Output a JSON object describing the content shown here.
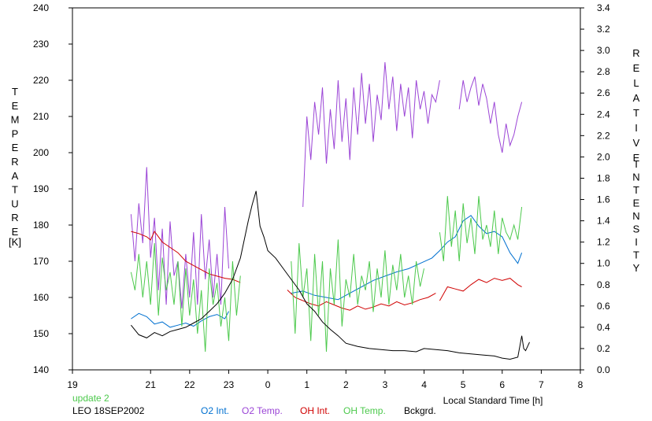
{
  "chart_data": {
    "type": "line",
    "x_axis": {
      "label": "Local Standard Time [h]",
      "ticks": [
        "19",
        "21",
        "22",
        "23",
        "0",
        "1",
        "2",
        "3",
        "4",
        "5",
        "6",
        "7",
        "8"
      ],
      "range": [
        19,
        32
      ]
    },
    "y_left": {
      "label_letters": [
        "T",
        "E",
        "M",
        "P",
        "E",
        "R",
        "A",
        "T",
        "U",
        "R",
        "E"
      ],
      "unit": "[K]",
      "range": [
        140,
        240
      ],
      "ticks": [
        "140",
        "150",
        "160",
        "170",
        "180",
        "190",
        "200",
        "210",
        "220",
        "230",
        "240"
      ]
    },
    "y_right": {
      "label_letters_1": [
        "R",
        "E",
        "L",
        "A",
        "T",
        "I",
        "V",
        "E"
      ],
      "label_letters_2": [
        "I",
        "N",
        "T",
        "E",
        "N",
        "S",
        "I",
        "T",
        "Y"
      ],
      "range": [
        0,
        3.4
      ],
      "ticks": [
        "0.0",
        "0.2",
        "0.4",
        "0.6",
        "0.8",
        "1.0",
        "1.2",
        "1.4",
        "1.6",
        "1.8",
        "2.0",
        "2.2",
        "2.4",
        "2.6",
        "2.8",
        "3.0",
        "3.2",
        "3.4"
      ]
    },
    "update_text": "update 2",
    "station_text": "LEO 18SEP2002",
    "series": [
      {
        "name": "O2 Int.",
        "axis": "right",
        "color": "#0070d0",
        "segments": [
          {
            "x": [
              20.5,
              20.7,
              20.9,
              21.1,
              21.3,
              21.5,
              21.7,
              21.9,
              22.1,
              22.3,
              22.5,
              22.7,
              22.9,
              23.0
            ],
            "y": [
              0.48,
              0.53,
              0.5,
              0.43,
              0.45,
              0.4,
              0.42,
              0.44,
              0.41,
              0.46,
              0.5,
              0.52,
              0.48,
              0.55
            ]
          },
          {
            "x": [
              24.6,
              24.9,
              25.2,
              25.5,
              25.8,
              26.1,
              26.4,
              26.7,
              27.0,
              27.3,
              27.6,
              27.9,
              28.2,
              28.4,
              28.6,
              28.8,
              29.0,
              29.2,
              29.4,
              29.6,
              29.8,
              30.0,
              30.2,
              30.4,
              30.5
            ],
            "y": [
              0.72,
              0.74,
              0.7,
              0.68,
              0.66,
              0.72,
              0.78,
              0.84,
              0.88,
              0.92,
              0.95,
              1.0,
              1.05,
              1.12,
              1.2,
              1.25,
              1.4,
              1.45,
              1.35,
              1.28,
              1.3,
              1.25,
              1.1,
              1.0,
              1.1
            ]
          }
        ]
      },
      {
        "name": "O2 Temp.",
        "axis": "left",
        "color": "#9b45d6",
        "segments": [
          {
            "x": [
              20.5,
              20.6,
              20.7,
              20.8,
              20.9,
              21.0,
              21.1,
              21.2,
              21.3,
              21.4,
              21.5,
              21.6,
              21.7,
              21.8,
              21.9,
              22.0,
              22.1,
              22.2,
              22.3,
              22.4,
              22.5,
              22.6,
              22.7,
              22.8,
              22.9,
              23.0
            ],
            "y": [
              183,
              170,
              186,
              175,
              196,
              171,
              182,
              162,
              179,
              158,
              181,
              166,
              170,
              157,
              172,
              160,
              178,
              158,
              183,
              165,
              176,
              160,
              172,
              158,
              185,
              168
            ]
          },
          {
            "x": [
              24.9,
              25.0,
              25.1,
              25.2,
              25.3,
              25.4,
              25.5,
              25.6,
              25.7,
              25.8,
              25.9,
              26.0,
              26.1,
              26.2,
              26.3,
              26.4,
              26.5,
              26.6,
              26.7,
              26.8,
              26.9,
              27.0,
              27.1,
              27.2,
              27.3,
              27.4,
              27.5,
              27.6,
              27.7,
              27.8,
              27.9,
              28.0,
              28.1,
              28.2,
              28.3,
              28.4
            ],
            "y": [
              185,
              210,
              198,
              214,
              205,
              218,
              197,
              212,
              201,
              220,
              203,
              215,
              198,
              218,
              205,
              222,
              208,
              219,
              203,
              216,
              209,
              225,
              212,
              221,
              206,
              219,
              210,
              218,
              204,
              220,
              212,
              217,
              208,
              216,
              214,
              220
            ]
          },
          {
            "x": [
              28.9,
              29.0,
              29.1,
              29.2,
              29.3,
              29.4,
              29.5,
              29.6,
              29.7,
              29.8,
              29.9,
              30.0,
              30.1,
              30.2,
              30.3,
              30.4,
              30.5
            ],
            "y": [
              212,
              220,
              214,
              218,
              221,
              213,
              219,
              215,
              208,
              214,
              205,
              200,
              208,
              202,
              205,
              210,
              214
            ]
          }
        ]
      },
      {
        "name": "OH Int.",
        "axis": "right",
        "color": "#d00000",
        "segments": [
          {
            "x": [
              20.5,
              20.7,
              20.9,
              21.0,
              21.1,
              21.3,
              21.5,
              21.7,
              21.9,
              22.1,
              22.3,
              22.5,
              22.7,
              22.9,
              23.1,
              23.3
            ],
            "y": [
              1.3,
              1.28,
              1.25,
              1.22,
              1.3,
              1.2,
              1.15,
              1.1,
              1.02,
              0.98,
              0.94,
              0.9,
              0.88,
              0.86,
              0.85,
              0.82
            ]
          },
          {
            "x": [
              24.5,
              24.7,
              24.9,
              25.1,
              25.3,
              25.5,
              25.7,
              25.9,
              26.1,
              26.3,
              26.5,
              26.7,
              26.9,
              27.1,
              27.3,
              27.5,
              27.7,
              27.9,
              28.1,
              28.3
            ],
            "y": [
              0.75,
              0.68,
              0.65,
              0.62,
              0.6,
              0.64,
              0.61,
              0.58,
              0.56,
              0.6,
              0.57,
              0.59,
              0.62,
              0.6,
              0.64,
              0.61,
              0.63,
              0.66,
              0.68,
              0.72
            ]
          },
          {
            "x": [
              28.4,
              28.6,
              28.8,
              29.0,
              29.2,
              29.4,
              29.6,
              29.8,
              30.0,
              30.2,
              30.4,
              30.5
            ],
            "y": [
              0.65,
              0.78,
              0.76,
              0.74,
              0.8,
              0.85,
              0.82,
              0.86,
              0.84,
              0.86,
              0.8,
              0.78
            ]
          }
        ]
      },
      {
        "name": "OH Temp.",
        "axis": "left",
        "color": "#4cc94c",
        "segments": [
          {
            "x": [
              20.5,
              20.6,
              20.7,
              20.8,
              20.9,
              21.0,
              21.1,
              21.2,
              21.3,
              21.4,
              21.5,
              21.6,
              21.7,
              21.8,
              21.9,
              22.0,
              22.1,
              22.2,
              22.3,
              22.4,
              22.5,
              22.6,
              22.7,
              22.8,
              22.9,
              23.0,
              23.1,
              23.2,
              23.3
            ],
            "y": [
              167,
              162,
              172,
              160,
              170,
              158,
              175,
              155,
              171,
              162,
              167,
              158,
              170,
              152,
              168,
              155,
              165,
              150,
              162,
              145,
              168,
              158,
              164,
              152,
              160,
              148,
              170,
              155,
              166
            ]
          },
          {
            "x": [
              24.6,
              24.7,
              24.8,
              24.9,
              25.0,
              25.1,
              25.2,
              25.3,
              25.4,
              25.5,
              25.6,
              25.7,
              25.8,
              25.9,
              26.0,
              26.1,
              26.2,
              26.3,
              26.4,
              26.5,
              26.6,
              26.7,
              26.8,
              26.9,
              27.0,
              27.1,
              27.2,
              27.3,
              27.4,
              27.5,
              27.6,
              27.7,
              27.8,
              27.9,
              28.0
            ],
            "y": [
              170,
              150,
              175,
              160,
              168,
              148,
              172,
              155,
              170,
              145,
              168,
              158,
              176,
              152,
              165,
              160,
              172,
              158,
              166,
              162,
              170,
              156,
              168,
              160,
              173,
              158,
              169,
              162,
              172,
              160,
              166,
              158,
              170,
              163,
              168
            ]
          },
          {
            "x": [
              28.4,
              28.5,
              28.6,
              28.7,
              28.8,
              28.9,
              29.0,
              29.1,
              29.2,
              29.3,
              29.4,
              29.5,
              29.6,
              29.7,
              29.8,
              29.9,
              30.0,
              30.1,
              30.2,
              30.3,
              30.4,
              30.5
            ],
            "y": [
              178,
              170,
              188,
              174,
              184,
              170,
              186,
              175,
              182,
              172,
              188,
              176,
              180,
              174,
              184,
              172,
              182,
              178,
              176,
              180,
              176,
              185
            ]
          }
        ]
      },
      {
        "name": "Bckgrd.",
        "axis": "right",
        "color": "#000000",
        "segments": [
          {
            "x": [
              20.5,
              20.7,
              20.9,
              21.1,
              21.3,
              21.5,
              21.7,
              21.9,
              22.1,
              22.3,
              22.5,
              22.7,
              22.9,
              23.1,
              23.3,
              23.5,
              23.6,
              23.7,
              23.8,
              23.9,
              24.0,
              24.2,
              24.4,
              24.6,
              24.8,
              25.0,
              25.2,
              25.4,
              25.6,
              25.8,
              26.0,
              26.3,
              26.6,
              26.9,
              27.2,
              27.5,
              27.8,
              28.0,
              28.3,
              28.6,
              28.9,
              29.2,
              29.5,
              29.8,
              30.0,
              30.2,
              30.4,
              30.5,
              30.55,
              30.6,
              30.7
            ],
            "y": [
              0.42,
              0.33,
              0.3,
              0.35,
              0.32,
              0.36,
              0.38,
              0.4,
              0.44,
              0.48,
              0.55,
              0.62,
              0.72,
              0.85,
              1.05,
              1.4,
              1.55,
              1.68,
              1.35,
              1.25,
              1.12,
              1.05,
              0.95,
              0.85,
              0.75,
              0.62,
              0.55,
              0.45,
              0.38,
              0.32,
              0.25,
              0.22,
              0.2,
              0.19,
              0.18,
              0.18,
              0.17,
              0.2,
              0.19,
              0.18,
              0.16,
              0.15,
              0.14,
              0.13,
              0.11,
              0.1,
              0.12,
              0.32,
              0.2,
              0.18,
              0.26
            ]
          }
        ]
      }
    ]
  }
}
